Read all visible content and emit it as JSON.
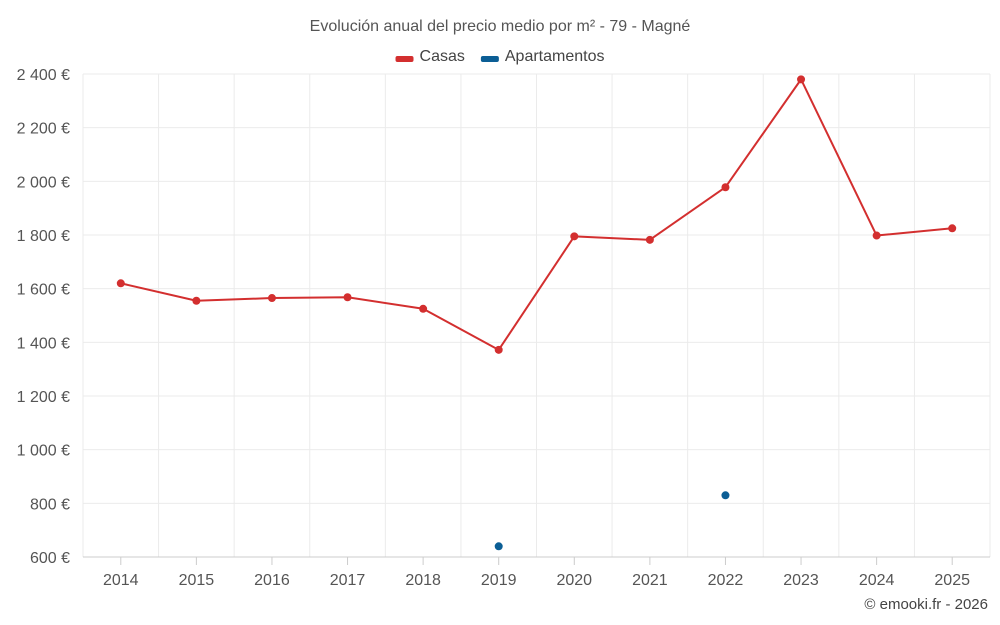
{
  "chart_data": {
    "type": "line",
    "title": "Evolución anual del precio medio por m² - 79 - Magné",
    "categories": [
      "2014",
      "2015",
      "2016",
      "2017",
      "2018",
      "2019",
      "2020",
      "2021",
      "2022",
      "2023",
      "2024",
      "2025"
    ],
    "series": [
      {
        "name": "Casas",
        "color": "#d32f2f",
        "values": [
          1620,
          1555,
          1565,
          1568,
          1525,
          1372,
          1795,
          1782,
          1978,
          2380,
          1798,
          1825
        ]
      },
      {
        "name": "Apartamentos",
        "color": "#0b5e95",
        "values": [
          null,
          null,
          null,
          null,
          null,
          640,
          null,
          null,
          830,
          null,
          null,
          null
        ]
      }
    ],
    "ylim": [
      600,
      2400
    ],
    "yticks": [
      600,
      800,
      1000,
      1200,
      1400,
      1600,
      1800,
      2000,
      2200,
      2400
    ],
    "ytick_labels": [
      "600 €",
      "800 €",
      "1 000 €",
      "1 200 €",
      "1 400 €",
      "1 600 €",
      "1 800 €",
      "2 000 €",
      "2 200 €",
      "2 400 €"
    ],
    "xlabel": "",
    "ylabel": "",
    "grid": true,
    "legend": "top-center",
    "credit": "© emooki.fr - 2026"
  }
}
